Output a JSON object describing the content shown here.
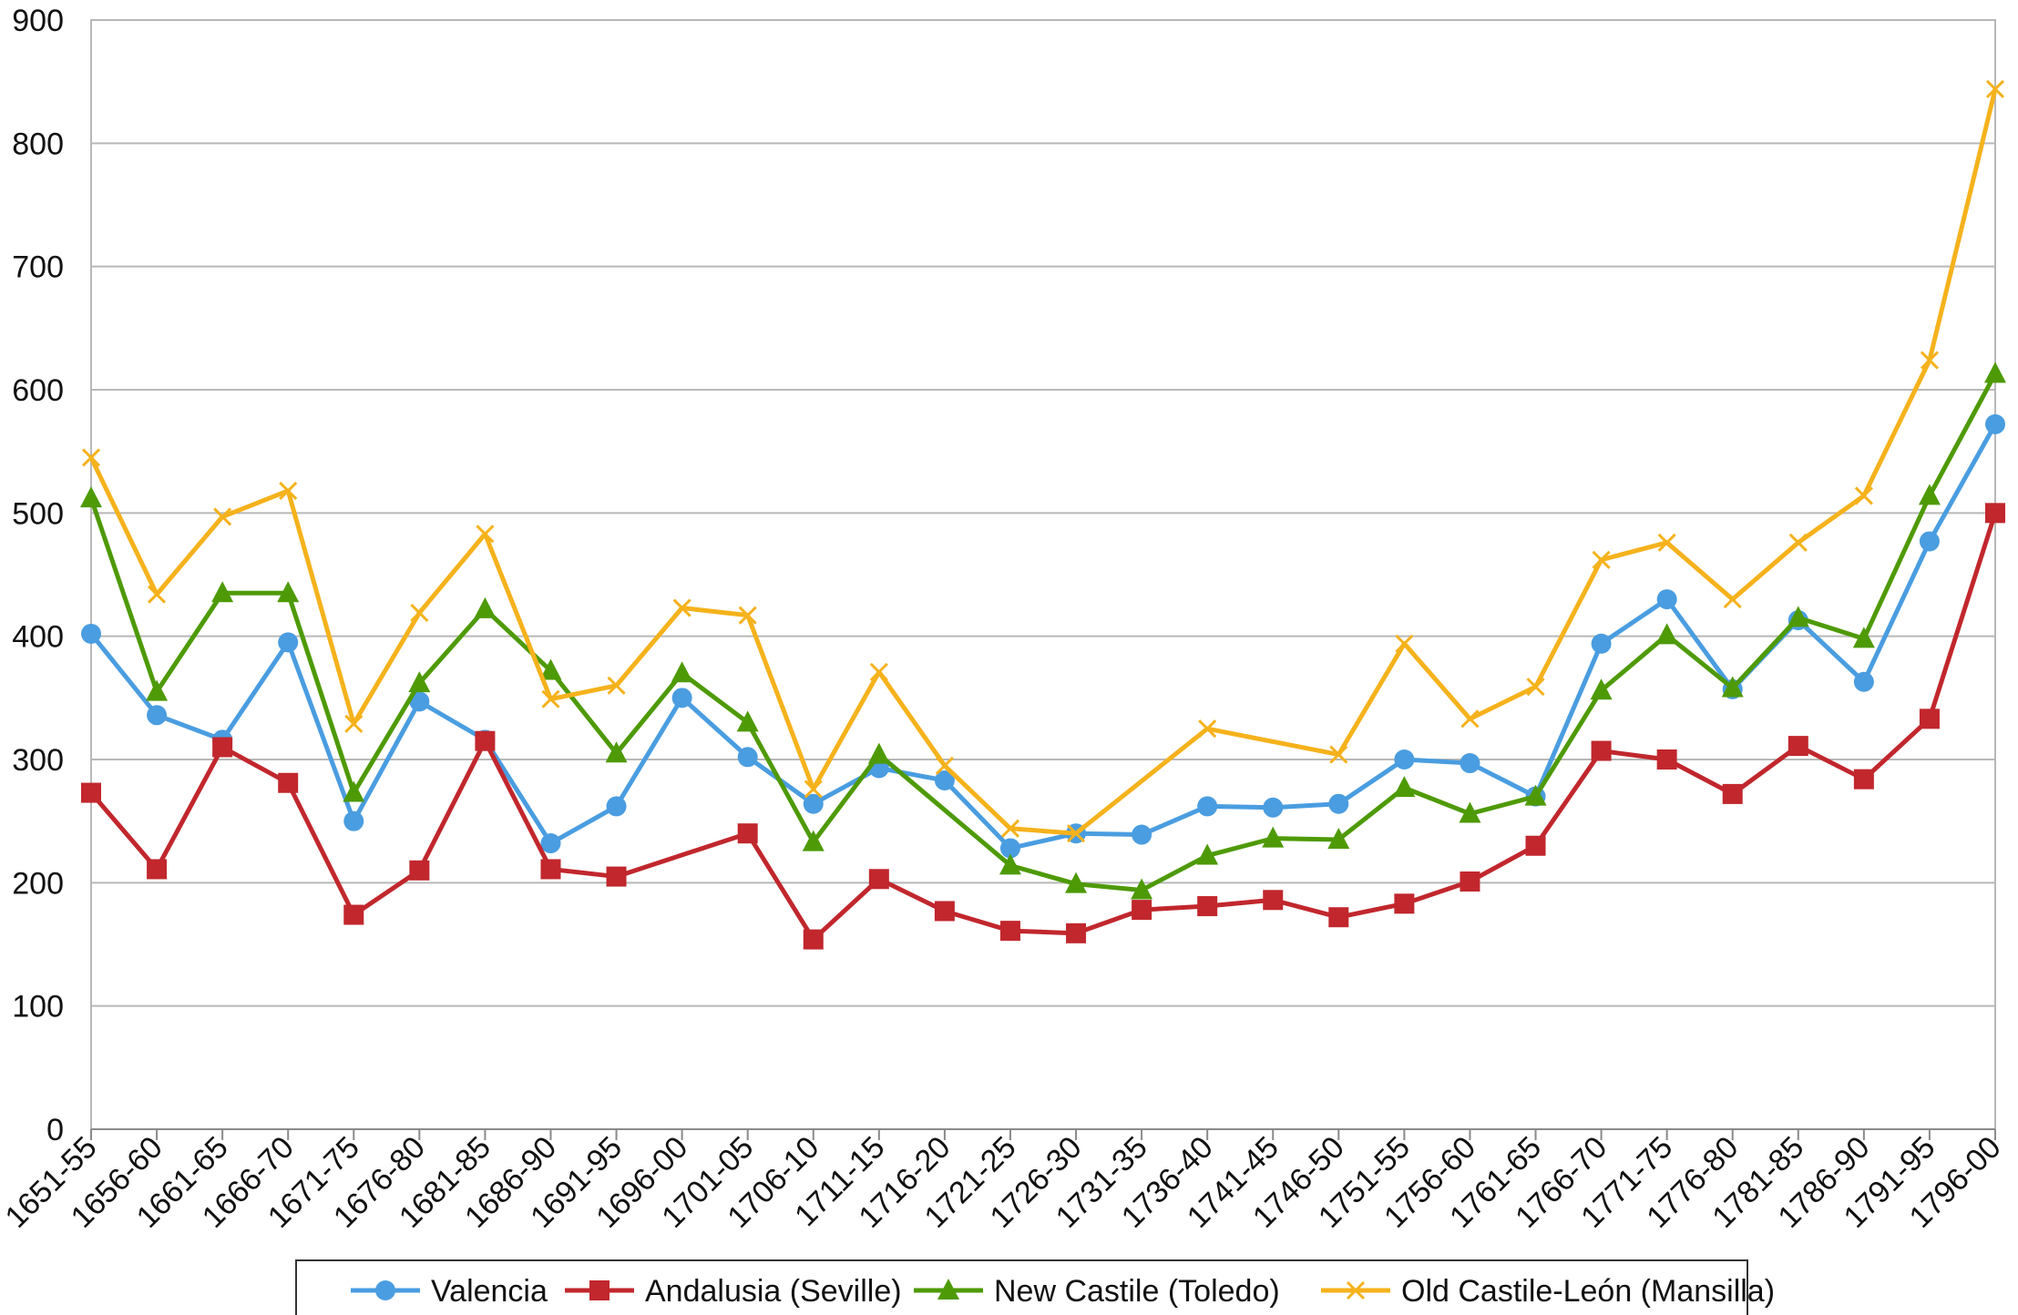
{
  "chart_data": {
    "type": "line",
    "title": "",
    "xlabel": "",
    "ylabel": "",
    "ylim": [
      0,
      900
    ],
    "yticks": [
      0,
      100,
      200,
      300,
      400,
      500,
      600,
      700,
      800,
      900
    ],
    "grid": true,
    "legend_position": "bottom",
    "categories": [
      "1651-55",
      "1656-60",
      "1661-65",
      "1666-70",
      "1671-75",
      "1676-80",
      "1681-85",
      "1686-90",
      "1691-95",
      "1696-00",
      "1701-05",
      "1706-10",
      "1711-15",
      "1716-20",
      "1721-25",
      "1726-30",
      "1731-35",
      "1736-40",
      "1741-45",
      "1746-50",
      "1751-55",
      "1756-60",
      "1761-65",
      "1766-70",
      "1771-75",
      "1776-80",
      "1781-85",
      "1786-90",
      "1791-95",
      "1796-00"
    ],
    "series": [
      {
        "name": "Valencia",
        "color": "#4a9de0",
        "marker": "circle",
        "values": [
          402,
          336,
          316,
          395,
          250,
          347,
          316,
          232,
          262,
          350,
          302,
          264,
          293,
          283,
          228,
          240,
          239,
          262,
          261,
          264,
          300,
          297,
          270,
          394,
          430,
          357,
          413,
          363,
          477,
          572
        ]
      },
      {
        "name": "Andalusia (Seville)",
        "color": "#c1272d",
        "marker": "square",
        "values": [
          273,
          211,
          310,
          281,
          174,
          210,
          315,
          211,
          205,
          null,
          240,
          154,
          203,
          177,
          161,
          159,
          178,
          181,
          186,
          172,
          183,
          201,
          230,
          307,
          300,
          272,
          311,
          284,
          333,
          500
        ]
      },
      {
        "name": "New Castile (Toledo)",
        "color": "#4e9a06",
        "marker": "triangle",
        "values": [
          512,
          355,
          435,
          435,
          273,
          362,
          422,
          372,
          305,
          370,
          330,
          233,
          304,
          null,
          214,
          199,
          194,
          222,
          236,
          235,
          277,
          256,
          270,
          356,
          401,
          358,
          415,
          398,
          514,
          613
        ]
      },
      {
        "name": "Old Castile-León (Mansilla)",
        "color": "#f5b21c",
        "marker": "x",
        "values": [
          545,
          434,
          497,
          518,
          329,
          419,
          483,
          349,
          360,
          423,
          417,
          276,
          371,
          295,
          244,
          240,
          null,
          325,
          null,
          304,
          394,
          333,
          359,
          462,
          476,
          430,
          476,
          514,
          624,
          844
        ]
      }
    ]
  }
}
